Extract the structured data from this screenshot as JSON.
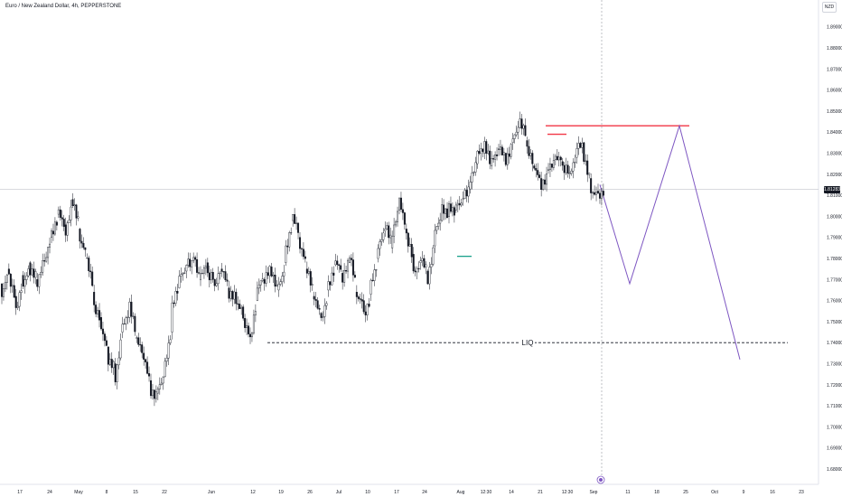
{
  "header": {
    "symbol_title": "Euro / New Zealand Dollar, 4h, PEPPERSTONE",
    "currency_badge": "NZD",
    "current_price": "1.81283"
  },
  "chart_data": {
    "type": "candlestick",
    "title": "Euro / New Zealand Dollar, 4h, PEPPERSTONE",
    "currency": "NZD",
    "ylim": [
      1.675,
      1.905
    ],
    "y_ticks": [
      "1.89000",
      "1.88000",
      "1.87000",
      "1.86000",
      "1.85000",
      "1.84000",
      "1.83000",
      "1.82000",
      "1.81000",
      "1.80000",
      "1.79000",
      "1.78000",
      "1.77000",
      "1.76000",
      "1.75000",
      "1.74000",
      "1.73000",
      "1.72000",
      "1.71000",
      "1.70000",
      "1.69000",
      "1.68000"
    ],
    "x_ticks": [
      "17",
      "24",
      "May",
      "8",
      "15",
      "22",
      "Jun",
      "12",
      "19",
      "26",
      "Jul",
      "10",
      "17",
      "24",
      "Aug",
      "12:30",
      "14",
      "21",
      "12:30",
      "Sep",
      "11",
      "18",
      "25",
      "Oct",
      "9",
      "16",
      "23"
    ],
    "price_series": [
      [
        1.768,
        1.76
      ],
      [
        1.775,
        1.77
      ],
      [
        1.762,
        1.756
      ],
      [
        1.772,
        1.769
      ],
      [
        1.778,
        1.775
      ],
      [
        1.77,
        1.767
      ],
      [
        1.779,
        1.776
      ],
      [
        1.79,
        1.79
      ],
      [
        1.801,
        1.803
      ],
      [
        1.796,
        1.794
      ],
      [
        1.808,
        1.808
      ],
      [
        1.794,
        1.788
      ],
      [
        1.78,
        1.777
      ],
      [
        1.764,
        1.755
      ],
      [
        1.752,
        1.747
      ],
      [
        1.738,
        1.733
      ],
      [
        1.73,
        1.724
      ],
      [
        1.745,
        1.748
      ],
      [
        1.752,
        1.756
      ],
      [
        1.742,
        1.74
      ],
      [
        1.735,
        1.733
      ],
      [
        1.722,
        1.718
      ],
      [
        1.716,
        1.72
      ],
      [
        1.724,
        1.73
      ],
      [
        1.745,
        1.756
      ],
      [
        1.766,
        1.77
      ],
      [
        1.774,
        1.778
      ],
      [
        1.779,
        1.783
      ],
      [
        1.77,
        1.774
      ],
      [
        1.778,
        1.772
      ],
      [
        1.77,
        1.765
      ],
      [
        1.775,
        1.773
      ],
      [
        1.766,
        1.762
      ],
      [
        1.764,
        1.76
      ],
      [
        1.757,
        1.752
      ],
      [
        1.744,
        1.742
      ],
      [
        1.76,
        1.765
      ],
      [
        1.77,
        1.768
      ],
      [
        1.776,
        1.772
      ],
      [
        1.765,
        1.768
      ],
      [
        1.778,
        1.786
      ],
      [
        1.798,
        1.801
      ],
      [
        1.79,
        1.785
      ],
      [
        1.775,
        1.773
      ],
      [
        1.762,
        1.76
      ],
      [
        1.754,
        1.751
      ],
      [
        1.765,
        1.769
      ],
      [
        1.777,
        1.78
      ],
      [
        1.773,
        1.77
      ],
      [
        1.778,
        1.78
      ],
      [
        1.764,
        1.76
      ],
      [
        1.76,
        1.753
      ],
      [
        1.763,
        1.77
      ],
      [
        1.78,
        1.787
      ],
      [
        1.793,
        1.796
      ],
      [
        1.785,
        1.79
      ],
      [
        1.803,
        1.806
      ],
      [
        1.794,
        1.79
      ],
      [
        1.782,
        1.775
      ],
      [
        1.778,
        1.782
      ],
      [
        1.774,
        1.77
      ],
      [
        1.786,
        1.792
      ],
      [
        1.798,
        1.802
      ],
      [
        1.8,
        1.804
      ],
      [
        1.803,
        1.807
      ],
      [
        1.808,
        1.812
      ],
      [
        1.813,
        1.818
      ],
      [
        1.825,
        1.829
      ],
      [
        1.83,
        1.832
      ],
      [
        1.824,
        1.826
      ],
      [
        1.832,
        1.834
      ],
      [
        1.83,
        1.828
      ],
      [
        1.835,
        1.838
      ],
      [
        1.842,
        1.844
      ],
      [
        1.836,
        1.83
      ],
      [
        1.824,
        1.822
      ],
      [
        1.818,
        1.815
      ],
      [
        1.822,
        1.825
      ],
      [
        1.827,
        1.829
      ],
      [
        1.826,
        1.822
      ],
      [
        1.82,
        1.818
      ],
      [
        1.828,
        1.832
      ],
      [
        1.835,
        1.828
      ],
      [
        1.818,
        1.813
      ],
      [
        1.812,
        1.811
      ]
    ],
    "annotations": {
      "resistance_level": 1.843,
      "short_resistance_level": 1.839,
      "liquidity_label": "LIQ",
      "liquidity_level": 1.74,
      "current_price": 1.81283,
      "projection_path": [
        {
          "x": "Sep",
          "y": 1.815
        },
        {
          "x": "11",
          "y": 1.768
        },
        {
          "x": "25",
          "y": 1.843
        },
        {
          "x": "9",
          "y": 1.732
        }
      ]
    },
    "colors": {
      "candle": "#131722",
      "resistance": "#f23645",
      "projection": "#7e57c2",
      "liquidity": "#131722",
      "grid": "#f0f3fa",
      "axis_text": "#131722"
    },
    "grid": false,
    "legend": "none"
  }
}
